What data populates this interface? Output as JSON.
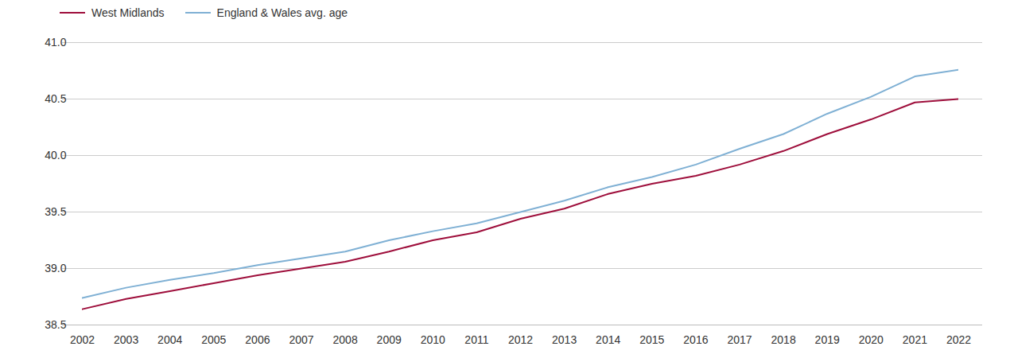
{
  "chart_data": {
    "type": "line",
    "x": [
      2002,
      2003,
      2004,
      2005,
      2006,
      2007,
      2008,
      2009,
      2010,
      2011,
      2012,
      2013,
      2014,
      2015,
      2016,
      2017,
      2018,
      2019,
      2020,
      2021,
      2022
    ],
    "series": [
      {
        "name": "West Midlands",
        "color": "#9e0e3b",
        "values": [
          38.64,
          38.73,
          38.8,
          38.87,
          38.94,
          39.0,
          39.06,
          39.15,
          39.25,
          39.32,
          39.44,
          39.53,
          39.66,
          39.75,
          39.82,
          39.92,
          40.04,
          40.19,
          40.32,
          40.47,
          40.5
        ]
      },
      {
        "name": "England & Wales avg. age",
        "color": "#7fb0d4",
        "values": [
          38.74,
          38.83,
          38.9,
          38.96,
          39.03,
          39.09,
          39.15,
          39.25,
          39.33,
          39.4,
          39.5,
          39.6,
          39.72,
          39.81,
          39.92,
          40.06,
          40.19,
          40.37,
          40.52,
          40.7,
          40.76
        ]
      }
    ],
    "xlim": [
      2002,
      2022
    ],
    "xticks": [
      2002,
      2003,
      2004,
      2005,
      2006,
      2007,
      2008,
      2009,
      2010,
      2011,
      2012,
      2013,
      2014,
      2015,
      2016,
      2017,
      2018,
      2019,
      2020,
      2021,
      2022
    ],
    "ylim": [
      38.5,
      41.0
    ],
    "yticks": [
      38.5,
      {
        "value": 39,
        "label": "39.0"
      },
      39.5,
      {
        "value": 40,
        "label": "40.0"
      },
      40.5,
      {
        "value": 41,
        "label": "41.0"
      }
    ],
    "grid": true,
    "legend": "top-left"
  }
}
